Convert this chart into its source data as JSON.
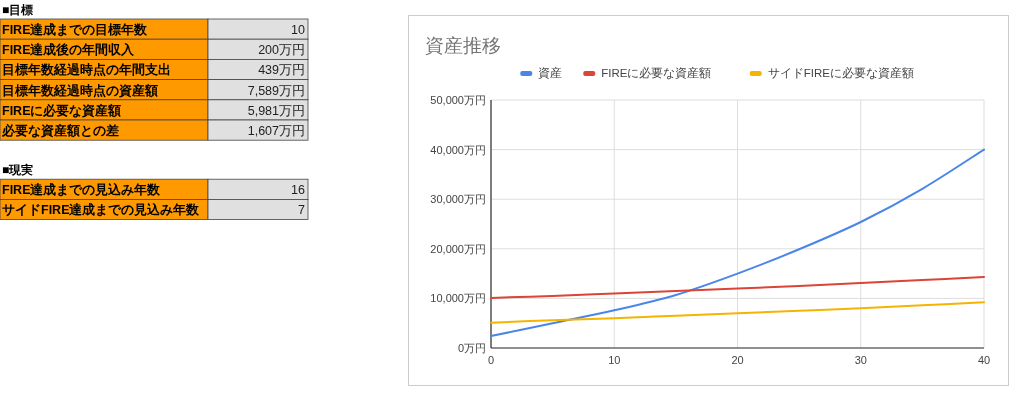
{
  "chart_data": [
    {
      "type": "other",
      "title": "■目標",
      "categories": [
        "FIRE達成までの目標年数",
        "FIRE達成後の年間収入",
        "目標年数経過時点の年間支出",
        "目標年数経過時点の資産額",
        "FIREに必要な資産額",
        "必要な資産額との差"
      ],
      "value_labels": [
        "10",
        "200万円",
        "439万円",
        "7,589万円",
        "5,981万円",
        "1,607万円"
      ],
      "color": "#ff9900"
    },
    {
      "type": "other",
      "title": "■現実",
      "categories": [
        "FIRE達成までの見込み年数",
        "サイドFIRE達成までの見込み年数"
      ],
      "value_labels": [
        "16",
        "7"
      ],
      "color": "#ff9900"
    },
    {
      "type": "line",
      "title": "資産推移",
      "x": [
        0,
        5,
        10,
        15,
        20,
        25,
        30,
        35,
        40
      ],
      "series": [
        {
          "name": "資産",
          "color": "#4a86e8",
          "values": [
            2400,
            5000,
            7600,
            10700,
            15000,
            19900,
            25400,
            32100,
            40000
          ]
        },
        {
          "name": "FIREに必要な資産額",
          "color": "#db4437",
          "values": [
            10100,
            10500,
            11000,
            11500,
            12000,
            12500,
            13100,
            13700,
            14300
          ]
        },
        {
          "name": "サイドFIREに必要な資産額",
          "color": "#f4b400",
          "values": [
            5100,
            5600,
            6000,
            6500,
            7000,
            7500,
            8000,
            8600,
            9200
          ]
        }
      ],
      "xlim": [
        0,
        40
      ],
      "xticks": [
        0,
        10,
        20,
        30,
        40
      ],
      "ylim": [
        0,
        50000
      ],
      "yticks": [
        {
          "value": 0,
          "label": "0万円"
        },
        {
          "value": 10000,
          "label": "10,000万円"
        },
        {
          "value": 20000,
          "label": "20,000万円"
        },
        {
          "value": 30000,
          "label": "30,000万円"
        },
        {
          "value": 40000,
          "label": "40,000万円"
        },
        {
          "value": 50000,
          "label": "50,000万円"
        }
      ],
      "grid": true,
      "legend": "top",
      "marker": "none",
      "line_style": "solid"
    }
  ]
}
